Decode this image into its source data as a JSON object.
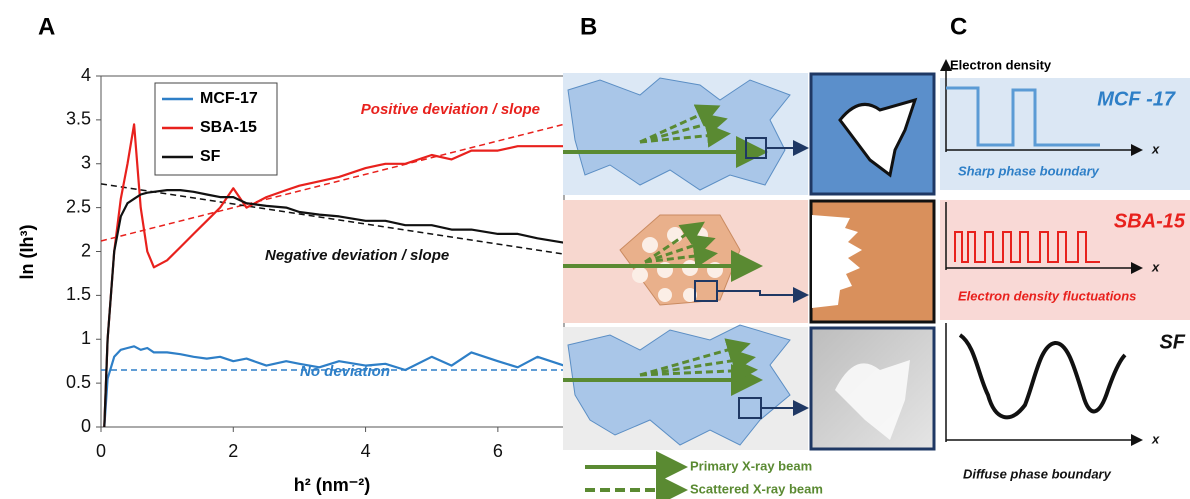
{
  "panel_labels": [
    "A",
    "B",
    "C"
  ],
  "chart_data": {
    "type": "line",
    "ylabel": "ln (Ih³)",
    "xlabel": "h² (nm⁻²)",
    "x": [
      0.05,
      0.1,
      0.2,
      0.3,
      0.4,
      0.5,
      0.6,
      0.7,
      0.8,
      1.0,
      1.2,
      1.4,
      1.6,
      1.8,
      2.0,
      2.2,
      2.5,
      2.8,
      3.0,
      3.3,
      3.6,
      4.0,
      4.3,
      4.6,
      5.0,
      5.3,
      5.6,
      6.0,
      6.3,
      6.6,
      7.0
    ],
    "series": [
      {
        "name": "MCF-17",
        "color": "#2e7fc7",
        "values": [
          0,
          0.55,
          0.8,
          0.88,
          0.9,
          0.92,
          0.88,
          0.9,
          0.85,
          0.85,
          0.83,
          0.8,
          0.78,
          0.8,
          0.75,
          0.78,
          0.7,
          0.75,
          0.72,
          0.68,
          0.75,
          0.7,
          0.72,
          0.65,
          0.8,
          0.7,
          0.85,
          0.75,
          0.68,
          0.8,
          0.7
        ]
      },
      {
        "name": "SBA-15",
        "color": "#e8211d",
        "values": [
          0,
          1.0,
          2.0,
          2.6,
          3.0,
          3.45,
          2.5,
          2.0,
          1.82,
          1.9,
          2.05,
          2.2,
          2.35,
          2.5,
          2.72,
          2.5,
          2.62,
          2.7,
          2.75,
          2.8,
          2.85,
          2.95,
          3.0,
          3.0,
          3.1,
          3.05,
          3.15,
          3.15,
          3.2,
          3.2,
          3.2
        ]
      },
      {
        "name": "SF",
        "color": "#111111",
        "values": [
          0,
          1.0,
          2.0,
          2.4,
          2.55,
          2.6,
          2.65,
          2.67,
          2.68,
          2.7,
          2.7,
          2.68,
          2.65,
          2.62,
          2.62,
          2.55,
          2.52,
          2.5,
          2.45,
          2.42,
          2.4,
          2.35,
          2.35,
          2.3,
          2.3,
          2.25,
          2.25,
          2.2,
          2.2,
          2.15,
          2.1
        ]
      }
    ],
    "fit_lines": [
      {
        "color": "#e8211d",
        "x": [
          0,
          7
        ],
        "y": [
          2.12,
          3.45
        ]
      },
      {
        "color": "#111111",
        "x": [
          0,
          7
        ],
        "y": [
          2.77,
          1.97
        ]
      },
      {
        "color": "#2e7fc7",
        "x": [
          0,
          7
        ],
        "y": [
          0.65,
          0.65
        ]
      }
    ],
    "annotations": [
      "Positive deviation / slope",
      "Negative deviation / slope",
      "No deviation"
    ],
    "xlim": [
      0,
      7
    ],
    "ylim": [
      0,
      4
    ],
    "xticks": [
      0,
      2,
      4,
      6
    ],
    "yticks": [
      0,
      0.5,
      1,
      1.5,
      2,
      2.5,
      3,
      3.5,
      4
    ],
    "grid": false,
    "legend": "upper left"
  },
  "diagram_b": {
    "legend": [
      "Primary X-ray beam",
      "Scattered X-ray beam"
    ]
  },
  "diagram_c": {
    "y_axis_label": "Electron density",
    "rows": [
      {
        "name": "MCF -17",
        "caption": "Sharp phase boundary",
        "x_label": "x"
      },
      {
        "name": "SBA-15",
        "caption": "Electron density fluctuations",
        "x_label": "x"
      },
      {
        "name": "SF",
        "caption": "Diffuse phase boundary",
        "x_label": "x"
      }
    ]
  }
}
